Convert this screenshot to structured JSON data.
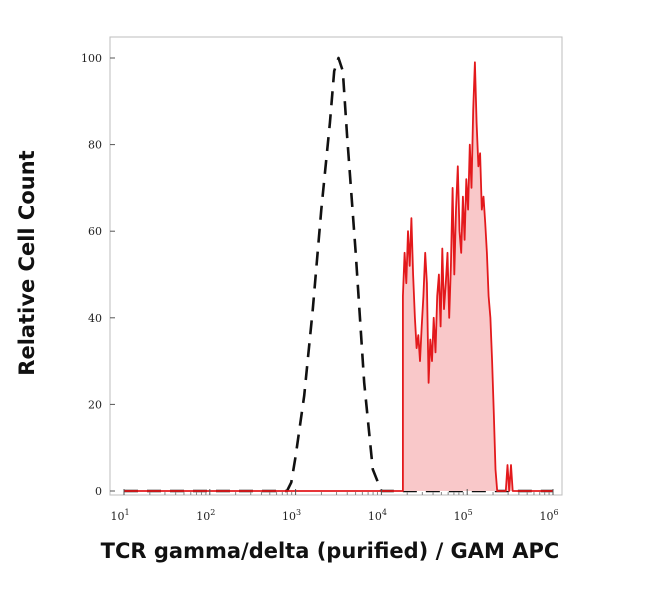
{
  "chart_data": {
    "type": "area",
    "xlabel": "TCR gamma/delta (purified) / GAM APC",
    "ylabel": "Relative Cell Count",
    "x_scale": "log",
    "xlim": [
      1,
      6
    ],
    "ylim": [
      0,
      100
    ],
    "x_ticks": [
      {
        "base": "10",
        "exp": "1"
      },
      {
        "base": "10",
        "exp": "2"
      },
      {
        "base": "10",
        "exp": "3"
      },
      {
        "base": "10",
        "exp": "4"
      },
      {
        "base": "10",
        "exp": "5"
      },
      {
        "base": "10",
        "exp": "6"
      }
    ],
    "y_ticks": [
      "0",
      "20",
      "40",
      "60",
      "80",
      "100"
    ],
    "y_tick_values": [
      0,
      20,
      40,
      60,
      80,
      100
    ],
    "series": [
      {
        "style": "dashed",
        "color": "#111111",
        "fill": "none",
        "points": [
          [
            1.0,
            0
          ],
          [
            2.0,
            0
          ],
          [
            2.9,
            0
          ],
          [
            2.95,
            2
          ],
          [
            3.0,
            8
          ],
          [
            3.1,
            22
          ],
          [
            3.2,
            42
          ],
          [
            3.3,
            65
          ],
          [
            3.4,
            85
          ],
          [
            3.45,
            97
          ],
          [
            3.5,
            100
          ],
          [
            3.55,
            97
          ],
          [
            3.6,
            82
          ],
          [
            3.7,
            55
          ],
          [
            3.8,
            25
          ],
          [
            3.9,
            5
          ],
          [
            4.0,
            0
          ],
          [
            5.0,
            0
          ],
          [
            6.0,
            0
          ]
        ]
      },
      {
        "style": "solid",
        "color": "#e3191c",
        "fill": "#f9c8c9",
        "points": [
          [
            1.0,
            0
          ],
          [
            4.0,
            0
          ],
          [
            4.25,
            0
          ],
          [
            4.25,
            45
          ],
          [
            4.27,
            55
          ],
          [
            4.29,
            48
          ],
          [
            4.31,
            60
          ],
          [
            4.33,
            52
          ],
          [
            4.35,
            63
          ],
          [
            4.37,
            50
          ],
          [
            4.39,
            40
          ],
          [
            4.41,
            33
          ],
          [
            4.43,
            36
          ],
          [
            4.45,
            30
          ],
          [
            4.47,
            38
          ],
          [
            4.49,
            45
          ],
          [
            4.51,
            55
          ],
          [
            4.53,
            48
          ],
          [
            4.55,
            25
          ],
          [
            4.57,
            35
          ],
          [
            4.59,
            30
          ],
          [
            4.61,
            40
          ],
          [
            4.63,
            32
          ],
          [
            4.65,
            45
          ],
          [
            4.67,
            50
          ],
          [
            4.69,
            38
          ],
          [
            4.71,
            56
          ],
          [
            4.73,
            42
          ],
          [
            4.75,
            48
          ],
          [
            4.77,
            55
          ],
          [
            4.79,
            40
          ],
          [
            4.81,
            52
          ],
          [
            4.83,
            70
          ],
          [
            4.85,
            50
          ],
          [
            4.87,
            65
          ],
          [
            4.89,
            75
          ],
          [
            4.91,
            60
          ],
          [
            4.93,
            55
          ],
          [
            4.95,
            68
          ],
          [
            4.97,
            58
          ],
          [
            4.99,
            72
          ],
          [
            5.01,
            65
          ],
          [
            5.03,
            80
          ],
          [
            5.05,
            70
          ],
          [
            5.07,
            88
          ],
          [
            5.09,
            99
          ],
          [
            5.11,
            85
          ],
          [
            5.13,
            75
          ],
          [
            5.15,
            78
          ],
          [
            5.17,
            65
          ],
          [
            5.19,
            68
          ],
          [
            5.21,
            62
          ],
          [
            5.23,
            55
          ],
          [
            5.25,
            45
          ],
          [
            5.27,
            40
          ],
          [
            5.29,
            30
          ],
          [
            5.31,
            18
          ],
          [
            5.33,
            5
          ],
          [
            5.35,
            0
          ],
          [
            5.45,
            0
          ],
          [
            5.47,
            6
          ],
          [
            5.49,
            0
          ],
          [
            5.51,
            6
          ],
          [
            5.53,
            0
          ],
          [
            6.0,
            0
          ]
        ]
      }
    ]
  }
}
